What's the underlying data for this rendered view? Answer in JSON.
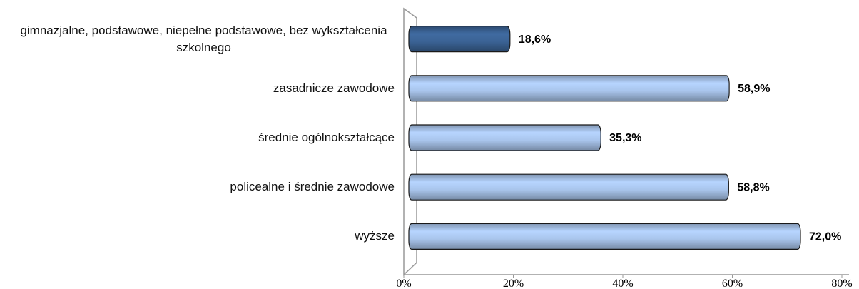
{
  "chart_data": {
    "type": "bar",
    "orientation": "horizontal",
    "categories": [
      "gimnazjalne, podstawowe, niepełne podstawowe, bez wykształcenia szkolnego",
      "zasadnicze zawodowe",
      "średnie ogólnokształcące",
      "policealne i średnie zawodowe",
      "wyższe"
    ],
    "values": [
      18.6,
      58.9,
      35.3,
      58.8,
      72.0
    ],
    "value_labels": [
      "18,6%",
      "58,9%",
      "35,3%",
      "58,8%",
      "72,0%"
    ],
    "colors": [
      "#3b6395",
      "#a9c5ec",
      "#a9c5ec",
      "#a9c5ec",
      "#a9c5ec"
    ],
    "xlim": [
      0,
      80
    ],
    "xticks": [
      {
        "value": 0,
        "label": "0%"
      },
      {
        "value": 20,
        "label": "20%"
      },
      {
        "value": 40,
        "label": "40%"
      },
      {
        "value": 60,
        "label": "60%"
      },
      {
        "value": 80,
        "label": "80%"
      }
    ],
    "grid": false
  }
}
